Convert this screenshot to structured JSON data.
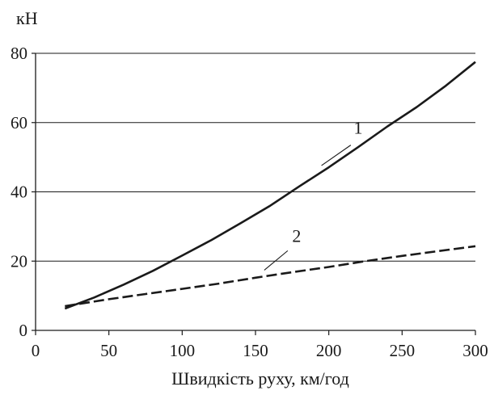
{
  "chart_data": {
    "type": "line",
    "ylabel": "кН",
    "xlabel": "Швидкість руху, км/год",
    "xlim": [
      0,
      300
    ],
    "ylim": [
      0,
      80
    ],
    "x_ticks": [
      0,
      50,
      100,
      150,
      200,
      250,
      300
    ],
    "y_ticks": [
      0,
      20,
      40,
      60,
      80
    ],
    "grid": "horizontal",
    "legend": "none",
    "series": [
      {
        "tag": "1",
        "line_style": "solid",
        "color": "#1a1a1a",
        "x": [
          20,
          40,
          60,
          80,
          100,
          120,
          140,
          160,
          180,
          200,
          220,
          240,
          260,
          280,
          300
        ],
        "y": [
          6.3,
          9.5,
          13.2,
          17.2,
          21.6,
          26.1,
          31.0,
          36.0,
          41.6,
          47.1,
          52.9,
          58.9,
          64.5,
          70.7,
          77.5
        ]
      },
      {
        "tag": "2",
        "line_style": "dashed",
        "color": "#1a1a1a",
        "x": [
          20,
          35,
          50,
          75,
          100,
          125,
          150,
          175,
          200,
          225,
          250,
          275,
          300
        ],
        "y": [
          7.0,
          8.0,
          9.0,
          10.5,
          12.0,
          13.5,
          15.2,
          16.8,
          18.3,
          20.0,
          21.5,
          22.9,
          24.3
        ]
      }
    ]
  }
}
